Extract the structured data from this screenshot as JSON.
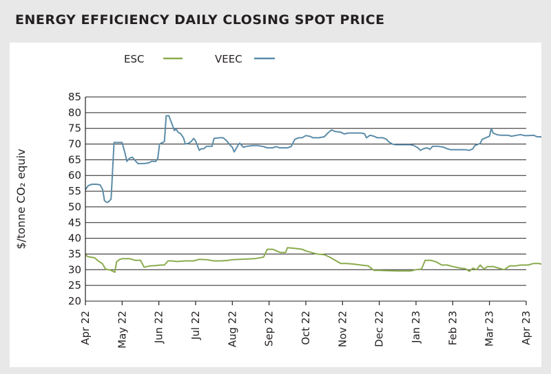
{
  "chart_data": {
    "type": "line",
    "title": "ENERGY EFFICIENCY DAILY CLOSING SPOT PRICE",
    "ylabel": "$/tonne CO₂ equiv",
    "xlabel": "",
    "ylim": [
      20,
      85
    ],
    "yticks": [
      20,
      25,
      30,
      35,
      40,
      45,
      50,
      55,
      60,
      65,
      70,
      75,
      80,
      85
    ],
    "grid": "horizontal",
    "legend_position": "top-left",
    "x_tick_labels": [
      "Apr 22",
      "May 22",
      "Jun 22",
      "Jul 22",
      "Aug 22",
      "Sep 22",
      "Oct 22",
      "Nov 22",
      "Dec 22",
      "Jan 23",
      "Feb 23",
      "Mar 23",
      "Apr 23"
    ],
    "series": [
      {
        "name": "ESC",
        "color": "#8aab4d",
        "points": [
          [
            0,
            34.8
          ],
          [
            0.06,
            34.2
          ],
          [
            0.14,
            34.0
          ],
          [
            0.25,
            33.8
          ],
          [
            0.38,
            32.5
          ],
          [
            0.46,
            32.0
          ],
          [
            0.55,
            30.2
          ],
          [
            0.7,
            29.8
          ],
          [
            0.8,
            29.2
          ],
          [
            0.85,
            32.5
          ],
          [
            0.92,
            33.2
          ],
          [
            1.0,
            33.5
          ],
          [
            1.2,
            33.5
          ],
          [
            1.35,
            33.0
          ],
          [
            1.5,
            33.0
          ],
          [
            1.6,
            30.8
          ],
          [
            1.75,
            31.2
          ],
          [
            1.9,
            31.3
          ],
          [
            2.05,
            31.5
          ],
          [
            2.15,
            31.5
          ],
          [
            2.25,
            32.8
          ],
          [
            2.35,
            32.8
          ],
          [
            2.5,
            32.6
          ],
          [
            2.7,
            32.8
          ],
          [
            2.95,
            32.8
          ],
          [
            3.1,
            33.3
          ],
          [
            3.3,
            33.2
          ],
          [
            3.5,
            32.8
          ],
          [
            3.7,
            32.8
          ],
          [
            3.9,
            33.0
          ],
          [
            4.0,
            33.2
          ],
          [
            4.2,
            33.3
          ],
          [
            4.4,
            33.4
          ],
          [
            4.6,
            33.5
          ],
          [
            4.85,
            34.0
          ],
          [
            4.95,
            36.5
          ],
          [
            5.1,
            36.5
          ],
          [
            5.3,
            35.5
          ],
          [
            5.45,
            35.5
          ],
          [
            5.5,
            37.0
          ],
          [
            5.7,
            36.8
          ],
          [
            5.9,
            36.5
          ],
          [
            6.0,
            36.0
          ],
          [
            6.15,
            35.5
          ],
          [
            6.3,
            35.0
          ],
          [
            6.5,
            34.8
          ],
          [
            6.65,
            34.0
          ],
          [
            6.8,
            33.0
          ],
          [
            6.95,
            32.0
          ],
          [
            7.1,
            32.0
          ],
          [
            7.3,
            31.8
          ],
          [
            7.5,
            31.5
          ],
          [
            7.7,
            31.2
          ],
          [
            7.85,
            29.8
          ],
          [
            8.0,
            29.8
          ],
          [
            8.5,
            29.6
          ],
          [
            8.85,
            29.6
          ],
          [
            9.0,
            30.0
          ],
          [
            9.15,
            30.2
          ],
          [
            9.25,
            33.0
          ],
          [
            9.4,
            33.0
          ],
          [
            9.55,
            32.5
          ],
          [
            9.7,
            31.5
          ],
          [
            9.85,
            31.5
          ],
          [
            10.0,
            31.0
          ],
          [
            10.2,
            30.5
          ],
          [
            10.35,
            30.3
          ],
          [
            10.45,
            29.5
          ],
          [
            10.55,
            30.5
          ],
          [
            10.65,
            30.0
          ],
          [
            10.75,
            31.5
          ],
          [
            10.85,
            30.2
          ],
          [
            10.95,
            31.0
          ],
          [
            11.1,
            31.0
          ],
          [
            11.25,
            30.5
          ],
          [
            11.4,
            30.0
          ],
          [
            11.55,
            31.2
          ],
          [
            11.7,
            31.2
          ],
          [
            11.85,
            31.5
          ],
          [
            12.05,
            31.5
          ],
          [
            12.2,
            32.0
          ],
          [
            12.35,
            32.0
          ],
          [
            12.5,
            31.5
          ],
          [
            12.6,
            31.5
          ],
          [
            12.7,
            30.8
          ]
        ]
      },
      {
        "name": "VEEC",
        "color": "#5b8ca8",
        "points": [
          [
            0,
            55.5
          ],
          [
            0.08,
            56.8
          ],
          [
            0.18,
            57.2
          ],
          [
            0.3,
            57.2
          ],
          [
            0.4,
            57.0
          ],
          [
            0.47,
            55.5
          ],
          [
            0.52,
            52.0
          ],
          [
            0.57,
            51.5
          ],
          [
            0.62,
            51.5
          ],
          [
            0.7,
            52.5
          ],
          [
            0.78,
            70.5
          ],
          [
            0.85,
            70.5
          ],
          [
            1.0,
            70.5
          ],
          [
            1.08,
            67.0
          ],
          [
            1.13,
            64.5
          ],
          [
            1.2,
            65.5
          ],
          [
            1.28,
            65.8
          ],
          [
            1.35,
            64.8
          ],
          [
            1.43,
            63.8
          ],
          [
            1.6,
            63.8
          ],
          [
            1.72,
            64.0
          ],
          [
            1.8,
            64.5
          ],
          [
            1.92,
            64.5
          ],
          [
            1.97,
            65.5
          ],
          [
            2.02,
            70.0
          ],
          [
            2.1,
            70.5
          ],
          [
            2.15,
            70.8
          ],
          [
            2.2,
            79.0
          ],
          [
            2.27,
            79.0
          ],
          [
            2.37,
            76.0
          ],
          [
            2.42,
            74.3
          ],
          [
            2.47,
            74.8
          ],
          [
            2.52,
            73.8
          ],
          [
            2.6,
            73.2
          ],
          [
            2.67,
            72.0
          ],
          [
            2.72,
            70.0
          ],
          [
            2.8,
            70.2
          ],
          [
            2.88,
            70.8
          ],
          [
            2.95,
            71.8
          ],
          [
            3.0,
            71.0
          ],
          [
            3.05,
            69.5
          ],
          [
            3.1,
            68.0
          ],
          [
            3.15,
            68.5
          ],
          [
            3.22,
            68.5
          ],
          [
            3.3,
            69.3
          ],
          [
            3.45,
            69.3
          ],
          [
            3.5,
            71.8
          ],
          [
            3.65,
            72.0
          ],
          [
            3.75,
            72.0
          ],
          [
            3.85,
            71.0
          ],
          [
            3.95,
            69.5
          ],
          [
            4.0,
            69.0
          ],
          [
            4.05,
            67.5
          ],
          [
            4.1,
            68.5
          ],
          [
            4.15,
            69.5
          ],
          [
            4.2,
            70.3
          ],
          [
            4.3,
            69.0
          ],
          [
            4.4,
            69.3
          ],
          [
            4.55,
            69.5
          ],
          [
            4.7,
            69.5
          ],
          [
            4.85,
            69.2
          ],
          [
            4.95,
            68.8
          ],
          [
            5.1,
            68.8
          ],
          [
            5.2,
            69.2
          ],
          [
            5.28,
            68.8
          ],
          [
            5.5,
            68.8
          ],
          [
            5.6,
            69.2
          ],
          [
            5.7,
            71.5
          ],
          [
            5.8,
            72.0
          ],
          [
            5.9,
            72.0
          ],
          [
            6.0,
            72.7
          ],
          [
            6.1,
            72.5
          ],
          [
            6.2,
            72.0
          ],
          [
            6.35,
            72.0
          ],
          [
            6.5,
            72.3
          ],
          [
            6.6,
            73.5
          ],
          [
            6.7,
            74.5
          ],
          [
            6.8,
            74.0
          ],
          [
            6.95,
            73.8
          ],
          [
            7.05,
            73.2
          ],
          [
            7.15,
            73.5
          ],
          [
            7.5,
            73.5
          ],
          [
            7.6,
            73.3
          ],
          [
            7.65,
            72.0
          ],
          [
            7.75,
            72.8
          ],
          [
            7.85,
            72.5
          ],
          [
            7.95,
            72.0
          ],
          [
            8.1,
            72.0
          ],
          [
            8.2,
            71.5
          ],
          [
            8.25,
            70.8
          ],
          [
            8.35,
            70.0
          ],
          [
            8.45,
            69.8
          ],
          [
            8.85,
            69.8
          ],
          [
            8.95,
            69.5
          ],
          [
            9.05,
            68.8
          ],
          [
            9.12,
            68.0
          ],
          [
            9.2,
            68.5
          ],
          [
            9.3,
            68.8
          ],
          [
            9.38,
            68.3
          ],
          [
            9.45,
            69.3
          ],
          [
            9.6,
            69.3
          ],
          [
            9.75,
            69.0
          ],
          [
            9.85,
            68.5
          ],
          [
            9.95,
            68.2
          ],
          [
            10.1,
            68.2
          ],
          [
            10.35,
            68.2
          ],
          [
            10.45,
            68.0
          ],
          [
            10.55,
            68.5
          ],
          [
            10.6,
            69.5
          ],
          [
            10.75,
            70.2
          ],
          [
            10.8,
            71.5
          ],
          [
            10.9,
            72.0
          ],
          [
            11.0,
            72.5
          ],
          [
            11.05,
            75.0
          ],
          [
            11.1,
            73.5
          ],
          [
            11.2,
            73.0
          ],
          [
            11.3,
            72.8
          ],
          [
            11.5,
            72.8
          ],
          [
            11.6,
            72.5
          ],
          [
            11.75,
            72.8
          ],
          [
            11.85,
            73.0
          ],
          [
            11.95,
            72.7
          ],
          [
            12.05,
            72.7
          ],
          [
            12.2,
            72.8
          ],
          [
            12.3,
            72.3
          ],
          [
            12.4,
            72.3
          ],
          [
            12.5,
            72.0
          ],
          [
            12.55,
            71.5
          ],
          [
            12.65,
            71.5
          ],
          [
            12.75,
            71.2
          ]
        ]
      }
    ]
  }
}
